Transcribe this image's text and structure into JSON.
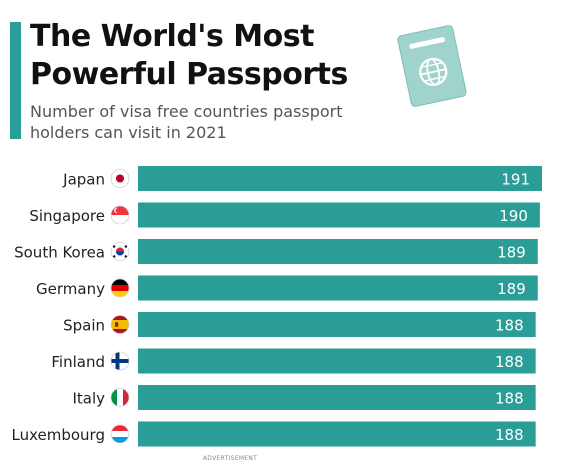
{
  "header": {
    "title": "The World's Most Powerful Passports",
    "subtitle": "Number of visa free countries passport holders can visit in 2021"
  },
  "footer": {
    "ad_label": "ADVERTISEMENT"
  },
  "colors": {
    "accent": "#2a9d97",
    "bar": "#2a9d97",
    "passport": "#9fd3cc"
  },
  "chart_data": {
    "type": "bar",
    "orientation": "horizontal",
    "title": "The World's Most Powerful Passports",
    "subtitle": "Number of visa free countries passport holders can visit in 2021",
    "categories": [
      "Japan",
      "Singapore",
      "South Korea",
      "Germany",
      "Spain",
      "Finland",
      "Italy",
      "Luxembourg"
    ],
    "flags": [
      "japan-flag-icon",
      "singapore-flag-icon",
      "south-korea-flag-icon",
      "germany-flag-icon",
      "spain-flag-icon",
      "finland-flag-icon",
      "italy-flag-icon",
      "luxembourg-flag-icon"
    ],
    "values": [
      191,
      190,
      189,
      189,
      188,
      188,
      188,
      188
    ],
    "value_labels": [
      "191",
      "190",
      "189",
      "189",
      "188",
      "188",
      "188",
      "188"
    ],
    "xlim": [
      0,
      191
    ],
    "grid": false,
    "legend": "none"
  }
}
